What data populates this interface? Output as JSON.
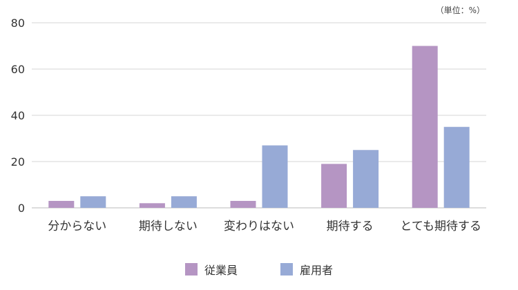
{
  "chart_data": {
    "type": "bar",
    "unit_note": "（単位：%）",
    "categories": [
      "分からない",
      "期待しない",
      "変わりはない",
      "期待する",
      "とても期待する"
    ],
    "series": [
      {
        "name": "従業員",
        "color": "#b595c3",
        "values": [
          3,
          2,
          3,
          19,
          70
        ]
      },
      {
        "name": "雇用者",
        "color": "#97aad6",
        "values": [
          5,
          5,
          27,
          25,
          35
        ]
      }
    ],
    "ylim": [
      0,
      80
    ],
    "yticks": [
      0,
      20,
      40,
      60,
      80
    ],
    "grid": true,
    "legend_position": "bottom-center"
  }
}
